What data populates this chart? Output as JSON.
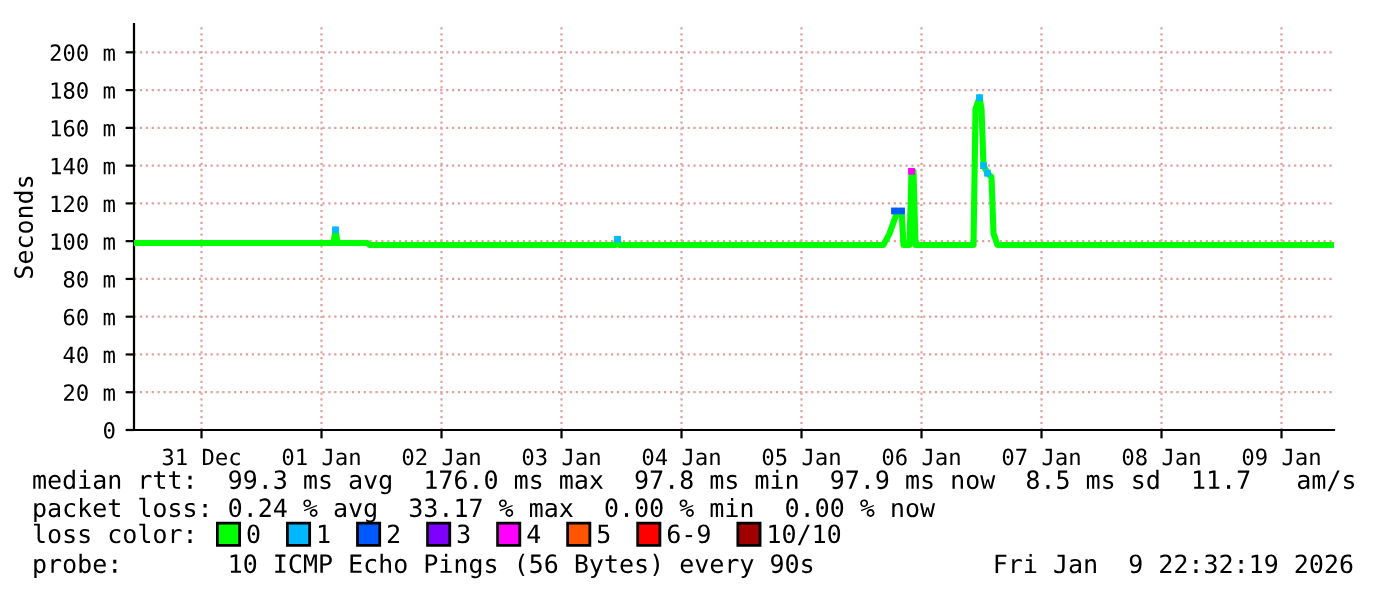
{
  "chart_data": {
    "type": "line",
    "ylabel": "Seconds",
    "xlim": [
      "2025-12-30T22:30",
      "2026-01-09T22:30"
    ],
    "xticks": [
      {
        "value": "2025-12-31T12:00",
        "label": "31 Dec"
      },
      {
        "value": "2026-01-01T12:00",
        "label": "01 Jan"
      },
      {
        "value": "2026-01-02T12:00",
        "label": "02 Jan"
      },
      {
        "value": "2026-01-03T12:00",
        "label": "03 Jan"
      },
      {
        "value": "2026-01-04T12:00",
        "label": "04 Jan"
      },
      {
        "value": "2026-01-05T12:00",
        "label": "05 Jan"
      },
      {
        "value": "2026-01-06T12:00",
        "label": "06 Jan"
      },
      {
        "value": "2026-01-07T12:00",
        "label": "07 Jan"
      },
      {
        "value": "2026-01-08T12:00",
        "label": "08 Jan"
      },
      {
        "value": "2026-01-09T12:00",
        "label": "09 Jan"
      }
    ],
    "ylim": [
      0,
      215
    ],
    "yticks": [
      0,
      {
        "value": 20,
        "label": "20 m"
      },
      {
        "value": 40,
        "label": "40 m"
      },
      {
        "value": 60,
        "label": "60 m"
      },
      {
        "value": 80,
        "label": "80 m"
      },
      {
        "value": 100,
        "label": "100 m"
      },
      {
        "value": 120,
        "label": "120 m"
      },
      {
        "value": 140,
        "label": "140 m"
      },
      {
        "value": 160,
        "label": "160 m"
      },
      {
        "value": 180,
        "label": "180 m"
      },
      {
        "value": 200,
        "label": "200 m"
      }
    ],
    "grid": true,
    "legend": "bottom",
    "legend_title": "loss color:",
    "series": [
      {
        "name": "0",
        "color": "#00ff00",
        "x": [
          "2025-12-30T22:30",
          "2026-01-01T14:24",
          "2026-01-01T14:48",
          "2026-01-01T15:12",
          "2026-01-01T21:12",
          "2026-01-01T21:36",
          "2026-01-03T22:48",
          "2026-01-03T23:12",
          "2026-01-03T23:36",
          "2026-01-06T04:24",
          "2026-01-06T05:36",
          "2026-01-06T06:24",
          "2026-01-06T07:12",
          "2026-01-06T08:00",
          "2026-01-06T08:24",
          "2026-01-06T09:36",
          "2026-01-06T10:00",
          "2026-01-06T10:24",
          "2026-01-06T10:48",
          "2026-01-06T22:24",
          "2026-01-06T22:48",
          "2026-01-06T23:36",
          "2026-01-07T00:00",
          "2026-01-07T00:24",
          "2026-01-07T01:12",
          "2026-01-07T02:00",
          "2026-01-07T02:24",
          "2026-01-07T03:12",
          "2026-01-09T22:30"
        ],
        "values": [
          99,
          99,
          106,
          99,
          99,
          98,
          98,
          101,
          98,
          98,
          104,
          110,
          116,
          116,
          98,
          98,
          137,
          137,
          98,
          98,
          170,
          176,
          170,
          140,
          136,
          134,
          104,
          98,
          98
        ]
      },
      {
        "name": "1",
        "color": "#00b8ff",
        "type": "scatter",
        "x": [
          "2026-01-01T14:48",
          "2026-01-03T23:12",
          "2026-01-06T23:36",
          "2026-01-07T00:24",
          "2026-01-07T01:12"
        ],
        "values": [
          106,
          101,
          176,
          140,
          136
        ]
      },
      {
        "name": "2",
        "color": "#0059ff",
        "type": "scatter",
        "x": [
          "2026-01-06T06:36",
          "2026-01-06T08:00"
        ],
        "values": [
          116,
          116
        ]
      },
      {
        "name": "3",
        "color": "#7e00ff",
        "type": "scatter"
      },
      {
        "name": "4",
        "color": "#ff00ff",
        "type": "scatter",
        "x": [
          "2026-01-06T10:00"
        ],
        "values": [
          137
        ]
      },
      {
        "name": "5",
        "color": "#ff5500",
        "type": "scatter"
      },
      {
        "name": "6-9",
        "color": "#ff0000",
        "type": "scatter"
      },
      {
        "name": "10/10",
        "color": "#a10000",
        "type": "scatter"
      }
    ],
    "annotations": [
      "median rtt:  99.3 ms avg  176.0 ms max  97.8 ms min  97.9 ms now  8.5 ms sd  11.7   am/s",
      "packet loss: 0.24 % avg  33.17 % max  0.00 % min  0.00 % now",
      "probe:       10 ICMP Echo Pings (56 Bytes) every 90s",
      "Fri Jan  9 22:32:19 2026"
    ]
  }
}
